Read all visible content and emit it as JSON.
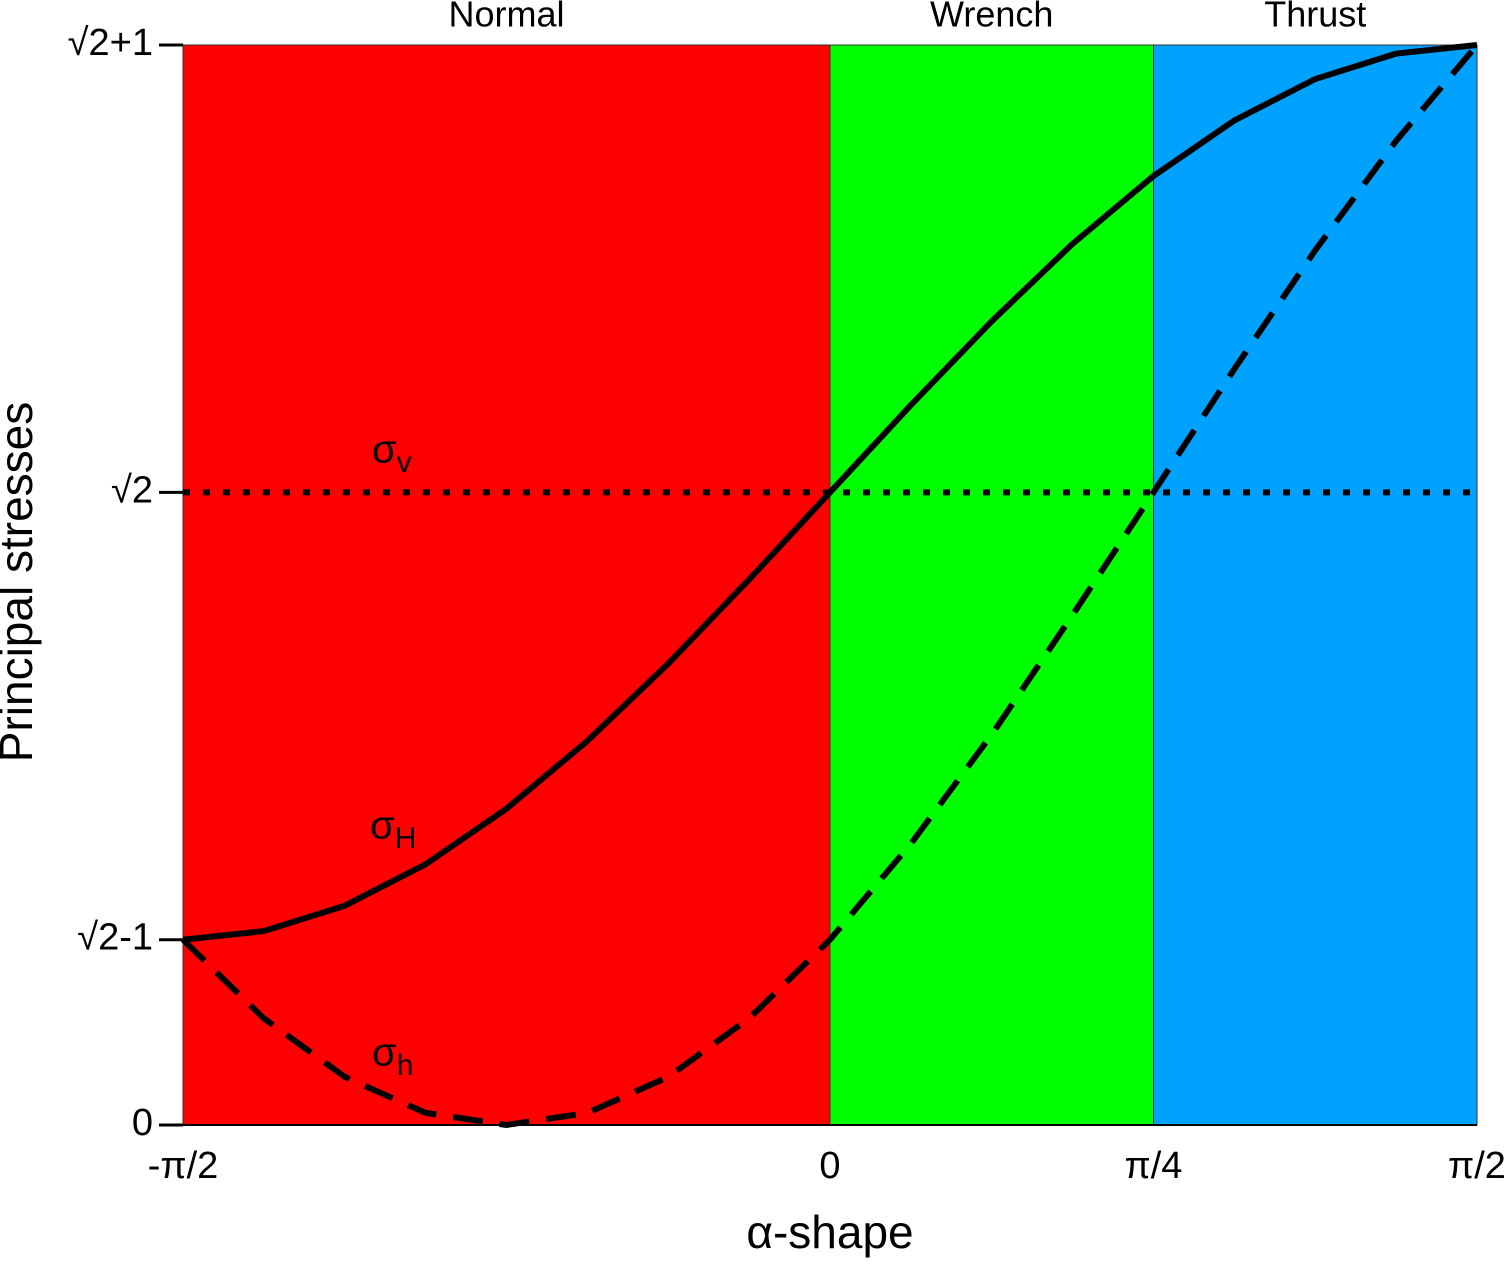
{
  "chart_data": {
    "type": "line",
    "xlabel": "α-shape",
    "ylabel": "Principal stresses",
    "xlim": [
      -1.5708,
      1.5708
    ],
    "ylim": [
      0,
      2.4142
    ],
    "xticks": [
      {
        "value": -1.5708,
        "label": "-π/2"
      },
      0,
      {
        "value": 0.7854,
        "label": "π/4"
      },
      {
        "value": 1.5708,
        "label": "π/2"
      }
    ],
    "yticks": [
      0,
      {
        "value": 0.4142,
        "label": "√2-1"
      },
      {
        "value": 1.4142,
        "label": "√2"
      },
      {
        "value": 2.4142,
        "label": "√2+1"
      }
    ],
    "regions": [
      {
        "name": "Normal",
        "start": -1.5708,
        "end": 0,
        "color": "#ff0000"
      },
      {
        "name": "Wrench",
        "start": 0,
        "end": 0.7854,
        "color": "#00ff00"
      },
      {
        "name": "Thrust",
        "start": 0.7854,
        "end": 1.5708,
        "color": "#00a2ff"
      }
    ],
    "x": [
      -1.5708,
      -1.3744,
      -1.1781,
      -0.9817,
      -0.7854,
      -0.589,
      -0.3927,
      -0.1963,
      0,
      0.1963,
      0.3927,
      0.589,
      0.7854,
      0.9817,
      1.1781,
      1.3744,
      1.5708
    ],
    "series": [
      {
        "name": "σv",
        "color": "#000000",
        "dash": "dotted",
        "values": [
          1.4142,
          1.4142,
          1.4142,
          1.4142,
          1.4142,
          1.4142,
          1.4142,
          1.4142,
          1.4142,
          1.4142,
          1.4142,
          1.4142,
          1.4142,
          1.4142,
          1.4142,
          1.4142,
          1.4142
        ]
      },
      {
        "name": "σH",
        "color": "#000000",
        "dash": "solid",
        "values": [
          0.4142,
          0.4334,
          0.4903,
          0.5827,
          0.7071,
          0.8586,
          1.0315,
          1.2191,
          1.4142,
          1.6093,
          1.7969,
          1.9698,
          2.1213,
          2.2457,
          2.3381,
          2.395,
          2.4142
        ]
      },
      {
        "name": "σh",
        "color": "#000000",
        "dash": "dashed",
        "values": [
          0.4142,
          0.2383,
          0.1076,
          0.0271,
          0,
          0.0271,
          0.1076,
          0.2383,
          0.4142,
          0.6285,
          0.873,
          1.1401,
          1.4142,
          1.6901,
          1.9554,
          2.1999,
          2.4142
        ]
      }
    ]
  }
}
